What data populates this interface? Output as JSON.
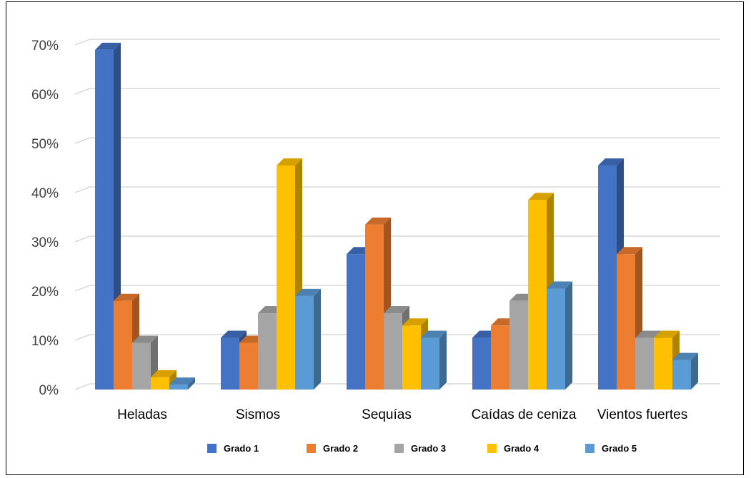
{
  "chart_data": {
    "type": "bar",
    "style": "3d-clustered-column",
    "categories": [
      "Heladas",
      "Sismos",
      "Sequías",
      "Caídas de ceniza",
      "Vientos fuertes"
    ],
    "series": [
      {
        "name": "Grado 1",
        "color": "#4472C4",
        "values": [
          69,
          10.5,
          27.5,
          10.5,
          45.5
        ]
      },
      {
        "name": "Grado 2",
        "color": "#ED7D31",
        "values": [
          18,
          9.5,
          33.5,
          13,
          27.5
        ]
      },
      {
        "name": "Grado 3",
        "color": "#A5A5A5",
        "values": [
          9.5,
          15.5,
          15.5,
          18,
          10.5
        ]
      },
      {
        "name": "Grado 4",
        "color": "#FFC000",
        "values": [
          2.5,
          45.5,
          13,
          38.5,
          10.5
        ]
      },
      {
        "name": "Grado 5",
        "color": "#5B9BD5",
        "values": [
          1,
          19,
          10.5,
          20.5,
          6
        ]
      }
    ],
    "yticks": [
      "0%",
      "10%",
      "20%",
      "30%",
      "40%",
      "50%",
      "60%",
      "70%"
    ],
    "ylim": [
      0,
      70
    ],
    "grid": true,
    "legend_position": "bottom"
  }
}
